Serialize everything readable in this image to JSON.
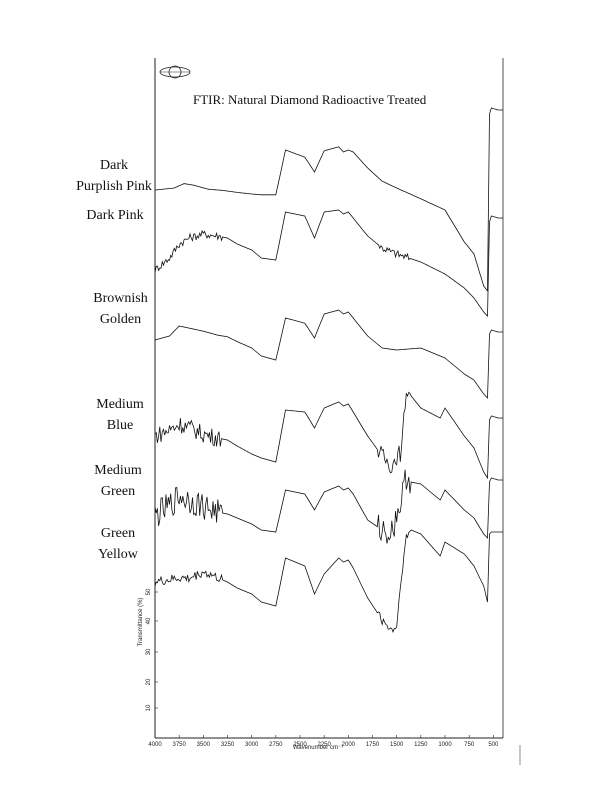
{
  "chart_data": {
    "type": "line",
    "title": "FTIR: Natural Diamond Radioactive Treated",
    "xlabel": "Wavenumber cm⁻¹",
    "ylabel": "Transmittance (%)",
    "x_ticks": [
      4000,
      3750,
      3500,
      3250,
      3000,
      2750,
      2500,
      2250,
      2000,
      1750,
      1500,
      1250,
      1000,
      750,
      500
    ],
    "y_ticks": [
      10,
      20,
      30,
      40,
      50
    ],
    "xlim": [
      4000,
      400
    ],
    "x_reversed": true,
    "grid": false,
    "legend": "labels at left of each trace",
    "series": [
      {
        "name": "Dark Purplish Pink",
        "noise": 0.0,
        "points": [
          [
            4000,
            0.5
          ],
          [
            3800,
            0.55
          ],
          [
            3700,
            0.66
          ],
          [
            3600,
            0.62
          ],
          [
            3450,
            0.52
          ],
          [
            3300,
            0.49
          ],
          [
            3150,
            0.44
          ],
          [
            3000,
            0.4
          ],
          [
            2900,
            0.38
          ],
          [
            2750,
            0.38
          ],
          [
            2650,
            1.5
          ],
          [
            2450,
            1.32
          ],
          [
            2350,
            0.95
          ],
          [
            2250,
            1.48
          ],
          [
            2100,
            1.58
          ],
          [
            2050,
            1.45
          ],
          [
            2000,
            1.5
          ],
          [
            1950,
            1.45
          ],
          [
            1800,
            1.05
          ],
          [
            1650,
            0.72
          ],
          [
            1500,
            0.55
          ],
          [
            1250,
            0.28
          ],
          [
            1000,
            0.0
          ],
          [
            800,
            -0.8
          ],
          [
            700,
            -1.1
          ],
          [
            600,
            -1.9
          ],
          [
            560,
            -2.02
          ],
          [
            540,
            2.4
          ],
          [
            520,
            2.55
          ],
          [
            450,
            2.5
          ],
          [
            400,
            2.5
          ]
        ]
      },
      {
        "name": "Dark Pink",
        "noise": 0.1,
        "points": [
          [
            4000,
            0.5
          ],
          [
            3850,
            0.8
          ],
          [
            3750,
            1.15
          ],
          [
            3650,
            1.3
          ],
          [
            3500,
            1.4
          ],
          [
            3350,
            1.35
          ],
          [
            3250,
            1.3
          ],
          [
            3150,
            1.15
          ],
          [
            3000,
            1.0
          ],
          [
            2900,
            0.8
          ],
          [
            2750,
            0.75
          ],
          [
            2650,
            1.95
          ],
          [
            2450,
            1.85
          ],
          [
            2350,
            1.3
          ],
          [
            2250,
            1.95
          ],
          [
            2100,
            2.0
          ],
          [
            2050,
            1.9
          ],
          [
            2000,
            1.95
          ],
          [
            1950,
            1.8
          ],
          [
            1800,
            1.35
          ],
          [
            1650,
            1.05
          ],
          [
            1500,
            0.9
          ],
          [
            1250,
            0.7
          ],
          [
            1000,
            0.4
          ],
          [
            800,
            0.05
          ],
          [
            700,
            -0.2
          ],
          [
            600,
            -0.55
          ],
          [
            560,
            -0.65
          ],
          [
            540,
            1.7
          ],
          [
            520,
            1.85
          ],
          [
            450,
            1.8
          ],
          [
            400,
            1.8
          ]
        ]
      },
      {
        "name": "Brownish Golden",
        "noise": 0.0,
        "points": [
          [
            4000,
            0.5
          ],
          [
            3850,
            0.6
          ],
          [
            3750,
            0.85
          ],
          [
            3650,
            0.8
          ],
          [
            3500,
            0.72
          ],
          [
            3350,
            0.62
          ],
          [
            3250,
            0.58
          ],
          [
            3150,
            0.46
          ],
          [
            3000,
            0.3
          ],
          [
            2900,
            0.1
          ],
          [
            2750,
            0.0
          ],
          [
            2650,
            1.05
          ],
          [
            2450,
            0.92
          ],
          [
            2350,
            0.55
          ],
          [
            2250,
            1.15
          ],
          [
            2100,
            1.25
          ],
          [
            2050,
            1.15
          ],
          [
            2000,
            1.2
          ],
          [
            1950,
            1.05
          ],
          [
            1800,
            0.6
          ],
          [
            1650,
            0.3
          ],
          [
            1500,
            0.25
          ],
          [
            1250,
            0.3
          ],
          [
            1000,
            0.05
          ],
          [
            800,
            -0.35
          ],
          [
            700,
            -0.5
          ],
          [
            600,
            -0.85
          ],
          [
            560,
            -0.95
          ],
          [
            540,
            0.65
          ],
          [
            520,
            0.75
          ],
          [
            450,
            0.7
          ],
          [
            400,
            0.7
          ]
        ]
      },
      {
        "name": "Medium Blue",
        "noise": 0.22,
        "points": [
          [
            4000,
            0.1
          ],
          [
            3850,
            0.25
          ],
          [
            3750,
            0.4
          ],
          [
            3650,
            0.32
          ],
          [
            3500,
            0.15
          ],
          [
            3350,
            0.05
          ],
          [
            3250,
            0.0
          ],
          [
            3150,
            -0.15
          ],
          [
            3000,
            -0.35
          ],
          [
            2900,
            -0.45
          ],
          [
            2750,
            -0.55
          ],
          [
            2650,
            0.75
          ],
          [
            2450,
            0.7
          ],
          [
            2350,
            0.3
          ],
          [
            2250,
            0.8
          ],
          [
            2100,
            0.95
          ],
          [
            2050,
            0.85
          ],
          [
            2000,
            0.9
          ],
          [
            1950,
            0.7
          ],
          [
            1800,
            0.1
          ],
          [
            1650,
            -0.4
          ],
          [
            1550,
            -0.65
          ],
          [
            1500,
            -0.4
          ],
          [
            1450,
            -0.3
          ],
          [
            1400,
            1.3
          ],
          [
            1350,
            1.1
          ],
          [
            1250,
            0.8
          ],
          [
            1050,
            0.55
          ],
          [
            1000,
            0.8
          ],
          [
            800,
            0.1
          ],
          [
            700,
            -0.2
          ],
          [
            600,
            -0.8
          ],
          [
            560,
            -0.95
          ],
          [
            540,
            0.5
          ],
          [
            520,
            0.6
          ],
          [
            450,
            0.55
          ],
          [
            400,
            0.55
          ]
        ]
      },
      {
        "name": "Medium Green",
        "noise": 0.35,
        "points": [
          [
            4000,
            0.1
          ],
          [
            3850,
            0.35
          ],
          [
            3750,
            0.6
          ],
          [
            3650,
            0.5
          ],
          [
            3500,
            0.35
          ],
          [
            3350,
            0.2
          ],
          [
            3250,
            0.15
          ],
          [
            3150,
            0.05
          ],
          [
            3000,
            -0.1
          ],
          [
            2900,
            -0.25
          ],
          [
            2750,
            -0.3
          ],
          [
            2650,
            0.75
          ],
          [
            2450,
            0.65
          ],
          [
            2350,
            0.25
          ],
          [
            2250,
            0.7
          ],
          [
            2100,
            0.85
          ],
          [
            2050,
            0.75
          ],
          [
            2000,
            0.8
          ],
          [
            1950,
            0.65
          ],
          [
            1800,
            0.0
          ],
          [
            1650,
            -0.25
          ],
          [
            1550,
            -0.3
          ],
          [
            1500,
            0.15
          ],
          [
            1450,
            0.5
          ],
          [
            1400,
            1.1
          ],
          [
            1350,
            0.95
          ],
          [
            1250,
            0.9
          ],
          [
            1050,
            0.5
          ],
          [
            1000,
            0.75
          ],
          [
            800,
            0.25
          ],
          [
            700,
            0.05
          ],
          [
            600,
            -0.35
          ],
          [
            560,
            -0.45
          ],
          [
            540,
            0.95
          ],
          [
            520,
            1.05
          ],
          [
            450,
            1.0
          ],
          [
            400,
            1.0
          ]
        ]
      },
      {
        "name": "Green Yellow",
        "noise": 0.12,
        "points": [
          [
            4000,
            0.2
          ],
          [
            3850,
            0.25
          ],
          [
            3750,
            0.3
          ],
          [
            3650,
            0.28
          ],
          [
            3500,
            0.45
          ],
          [
            3350,
            0.3
          ],
          [
            3250,
            0.2
          ],
          [
            3150,
            0.05
          ],
          [
            3000,
            -0.1
          ],
          [
            2900,
            -0.3
          ],
          [
            2750,
            -0.4
          ],
          [
            2650,
            0.8
          ],
          [
            2450,
            0.6
          ],
          [
            2350,
            -0.1
          ],
          [
            2250,
            0.4
          ],
          [
            2100,
            0.8
          ],
          [
            2050,
            0.7
          ],
          [
            2000,
            0.75
          ],
          [
            1950,
            0.55
          ],
          [
            1800,
            -0.2
          ],
          [
            1650,
            -0.75
          ],
          [
            1550,
            -1.0
          ],
          [
            1500,
            -0.9
          ],
          [
            1450,
            0.4
          ],
          [
            1400,
            1.3
          ],
          [
            1350,
            1.5
          ],
          [
            1250,
            1.4
          ],
          [
            1050,
            0.85
          ],
          [
            1000,
            1.2
          ],
          [
            800,
            0.9
          ],
          [
            700,
            0.6
          ],
          [
            600,
            0.1
          ],
          [
            560,
            -0.3
          ],
          [
            540,
            1.4
          ],
          [
            520,
            1.45
          ],
          [
            450,
            1.45
          ],
          [
            400,
            1.45
          ]
        ]
      }
    ]
  }
}
